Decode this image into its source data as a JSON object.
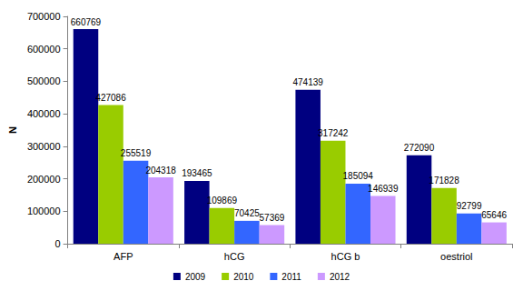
{
  "chart_data": {
    "type": "bar",
    "y_label": "N",
    "categories": [
      "AFP",
      "hCG",
      "hCG b",
      "oestriol"
    ],
    "series": [
      {
        "name": "2009",
        "color": "#000080",
        "values": [
          660769,
          193465,
          474139,
          272090
        ]
      },
      {
        "name": "2010",
        "color": "#99cc00",
        "values": [
          427086,
          109869,
          317242,
          171828
        ]
      },
      {
        "name": "2011",
        "color": "#3366ff",
        "values": [
          255519,
          70425,
          185094,
          92799
        ]
      },
      {
        "name": "2012",
        "color": "#cc99ff",
        "values": [
          204318,
          57369,
          146939,
          65646
        ]
      }
    ],
    "ylim": [
      0,
      700000
    ],
    "yticks": [
      0,
      100000,
      200000,
      300000,
      400000,
      500000,
      600000,
      700000
    ],
    "grid": false,
    "legend": "bottom",
    "data_labels": true
  }
}
